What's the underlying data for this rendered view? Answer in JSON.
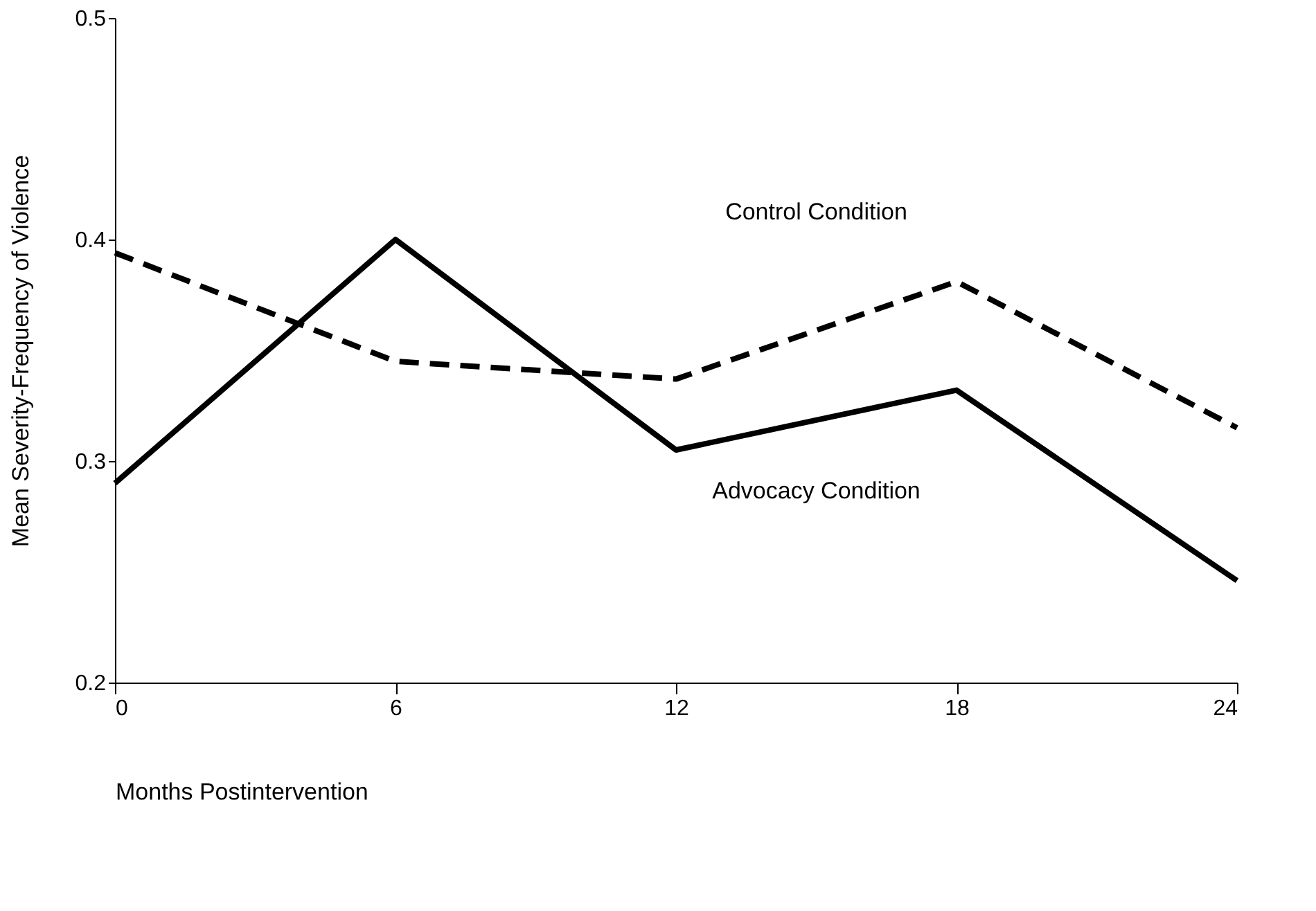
{
  "chart_data": {
    "type": "line",
    "xlabel": "Months Postintervention",
    "ylabel": "Mean Severity-Frequency of Violence",
    "x": [
      0,
      6,
      12,
      18,
      24
    ],
    "series": [
      {
        "name": "Control Condition",
        "color": "#000000",
        "line_style": "dashed",
        "values": [
          0.394,
          0.345,
          0.337,
          0.381,
          0.315
        ]
      },
      {
        "name": "Advocacy Condition",
        "color": "#000000",
        "line_style": "solid",
        "values": [
          0.29,
          0.4,
          0.305,
          0.332,
          0.246
        ]
      }
    ],
    "xlim": [
      0,
      24
    ],
    "xticks": [
      0,
      6,
      12,
      18,
      24
    ],
    "ylim": [
      0.2,
      0.5
    ],
    "yticks": [
      0.2,
      0.3,
      0.4,
      0.5
    ],
    "grid": false,
    "legend": false,
    "marker": "none"
  }
}
